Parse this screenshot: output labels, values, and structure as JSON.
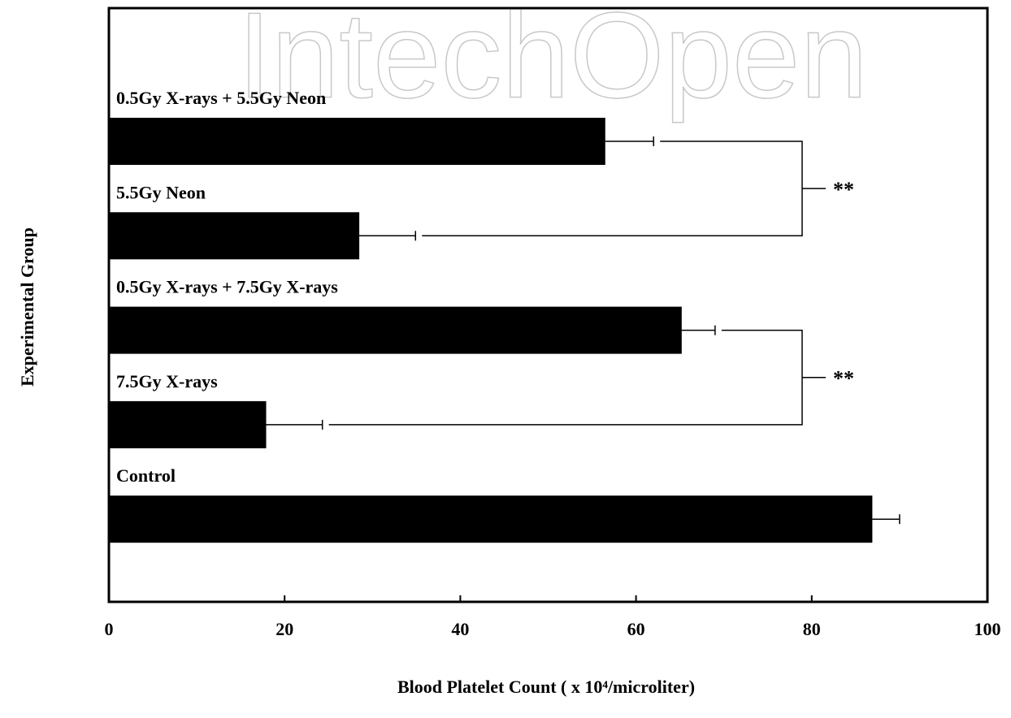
{
  "chart_data": {
    "type": "hbar",
    "watermark": "IntechOpen",
    "categories": [
      "0.5Gy X-rays + 5.5Gy Neon",
      "5.5Gy Neon",
      "0.5Gy X-rays + 7.5Gy X-rays",
      "7.5Gy X-rays",
      "Control"
    ],
    "values": [
      56.5,
      28.5,
      65.2,
      17.9,
      86.9
    ],
    "errors": [
      5.5,
      6.4,
      3.8,
      6.4,
      3.1
    ],
    "color": "#000000",
    "xlim": [
      0,
      100
    ],
    "xticks": [
      0,
      20,
      40,
      60,
      80,
      100
    ],
    "x_label": "Blood Platelet Count (  x 10⁴/microliter)",
    "y_label": "Experimental Group",
    "significance": [
      {
        "between": [
          0,
          1
        ],
        "label": "**"
      },
      {
        "between": [
          2,
          3
        ],
        "label": "**"
      }
    ]
  }
}
